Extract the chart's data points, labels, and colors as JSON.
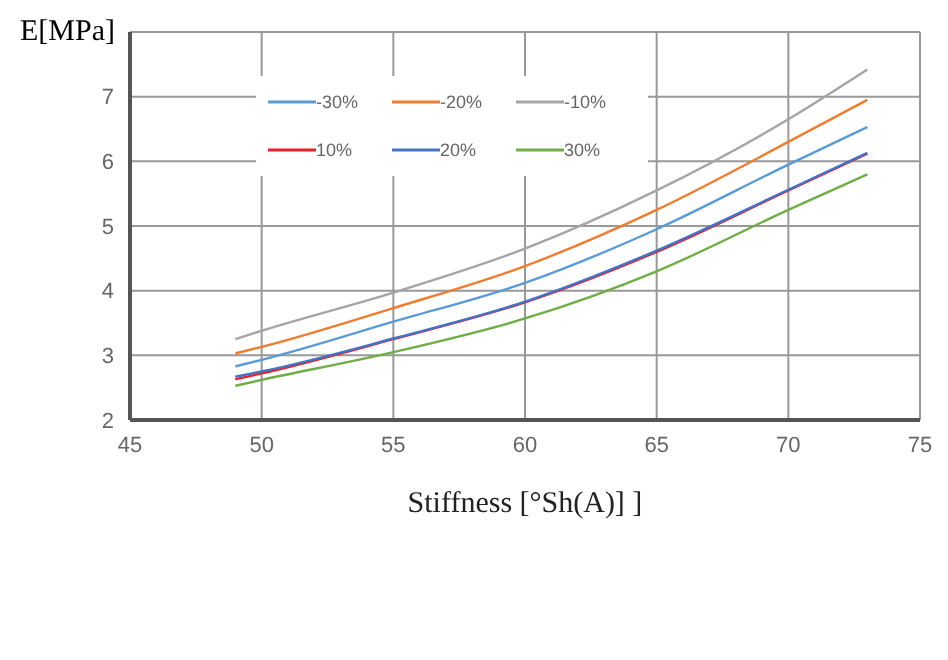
{
  "chart_data": {
    "type": "line",
    "xlabel": "Stiffness [°Sh(A)]  ]",
    "ylabel": "E[MPa]",
    "x": [
      49,
      50,
      55,
      60,
      65,
      70,
      73
    ],
    "series": [
      {
        "name": "-30%",
        "color": "#5b9bd5",
        "values": [
          2.83,
          2.93,
          3.52,
          4.12,
          4.95,
          5.95,
          6.53
        ]
      },
      {
        "name": "-20%",
        "color": "#ed7d31",
        "values": [
          3.03,
          3.13,
          3.73,
          4.38,
          5.25,
          6.3,
          6.95
        ]
      },
      {
        "name": "-10%",
        "color": "#a5a5a5",
        "values": [
          3.25,
          3.38,
          3.97,
          4.65,
          5.55,
          6.65,
          7.42
        ]
      },
      {
        "name": "10%",
        "color": "#e8202a",
        "values": [
          2.63,
          2.72,
          3.25,
          3.82,
          4.6,
          5.55,
          6.12
        ]
      },
      {
        "name": "20%",
        "color": "#4472c4",
        "values": [
          2.67,
          2.75,
          3.26,
          3.83,
          4.62,
          5.56,
          6.13
        ]
      },
      {
        "name": "30%",
        "color": "#70ad47",
        "values": [
          2.53,
          2.62,
          3.05,
          3.57,
          4.3,
          5.25,
          5.8
        ]
      }
    ],
    "xlim": [
      45,
      75
    ],
    "xticks": [
      45,
      50,
      55,
      60,
      65,
      70,
      75
    ],
    "ylim": [
      2,
      8
    ],
    "yticks": [
      2,
      3,
      4,
      5,
      6,
      7,
      {
        "value": 8,
        "label": null
      }
    ],
    "grid": true,
    "legend": "top left",
    "marker": "none",
    "line_style": "solid"
  }
}
